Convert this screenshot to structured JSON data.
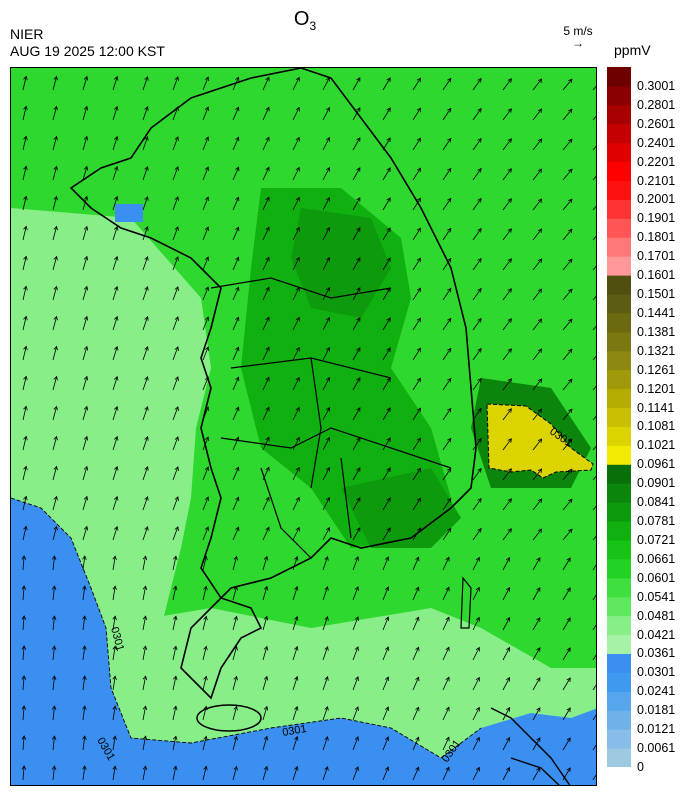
{
  "header": {
    "title_main": "O",
    "title_sub": "3",
    "agency": "NIER",
    "datetime": "AUG 19 2025 12:00 KST"
  },
  "wind_legend": {
    "label": "5 m/s",
    "arrow": "→"
  },
  "unit": "ppmV",
  "colorbar": {
    "colors": [
      "#9ecae1",
      "#87bde8",
      "#6fb2ea",
      "#55a6ec",
      "#3f99ef",
      "#3a8ff0",
      "#a6f2a6",
      "#88ee88",
      "#5ee85e",
      "#3edf3e",
      "#23d323",
      "#16c416",
      "#0fb00f",
      "#0d9b0d",
      "#0b850b",
      "#097009",
      "#f2ea00",
      "#dcd400",
      "#c8c000",
      "#b4ad00",
      "#a09a0a",
      "#8c8812",
      "#7a7810",
      "#6b6a10",
      "#5c5c14",
      "#4f4f10",
      "#ff9999",
      "#ff7777",
      "#ff5555",
      "#ff3333",
      "#ff1111",
      "#ff0000",
      "#e00000",
      "#c40000",
      "#a80000",
      "#8a0000",
      "#6e0000"
    ],
    "labels": [
      "0",
      "0.0061",
      "0.0121",
      "0.0181",
      "0.0241",
      "0.0301",
      "0.0361",
      "0.0421",
      "0.0481",
      "0.0541",
      "0.0601",
      "0.0661",
      "0.0721",
      "0.0781",
      "0.0841",
      "0.0901",
      "0.0961",
      "0.1021",
      "0.1081",
      "0.1141",
      "0.1201",
      "0.1261",
      "0.1321",
      "0.1381",
      "0.1441",
      "0.1501",
      "0.1601",
      "0.1701",
      "0.1801",
      "0.1901",
      "0.2001",
      "0.2101",
      "0.2201",
      "0.2401",
      "0.2601",
      "0.2801",
      "0.3001"
    ]
  },
  "map": {
    "contour_labels": [
      "0301",
      "0301",
      "0301",
      "0301",
      "0301"
    ],
    "fill_colors": {
      "ocean_low": "#3a8ff0",
      "light_green": "#88ee88",
      "mid_green": "#2ed82e",
      "dark_green": "#0d9b0d",
      "high_yellow": "#dcd400"
    }
  }
}
